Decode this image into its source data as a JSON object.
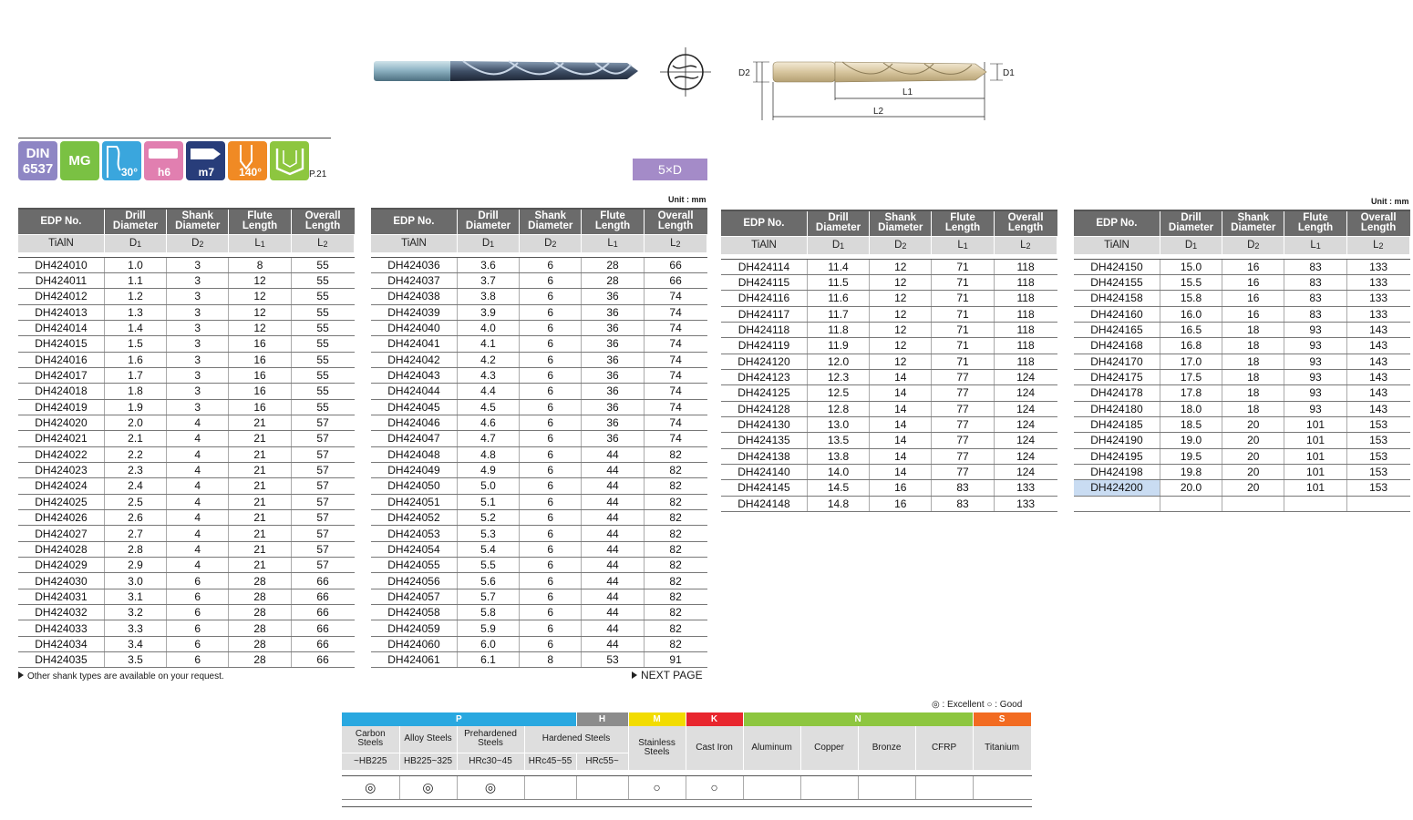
{
  "icons": {
    "din_line1": "DIN",
    "din_line2": "6537",
    "mg": "MG",
    "helix": "30°",
    "shank_tol": "h6",
    "dia_tol": "m7",
    "point": "140°",
    "page_ref": "P.21"
  },
  "diagram": {
    "d2": "D2",
    "d1": "D1",
    "l1": "L1",
    "l2": "L2"
  },
  "ratio_badge": "5×D",
  "unit": "Unit : mm",
  "headers": {
    "edp": "EDP No.",
    "drill1": "Drill",
    "drill2": "Diameter",
    "shank1": "Shank",
    "shank2": "Diameter",
    "flute1": "Flute",
    "flute2": "Length",
    "overall1": "Overall",
    "overall2": "Length",
    "coating": "TiAlN",
    "sym_d1": "D",
    "sym_d1_sub": "1",
    "sym_d2": "D",
    "sym_d2_sub": "2",
    "sym_l1": "L",
    "sym_l1_sub": "1",
    "sym_l2": "L",
    "sym_l2_sub": "2"
  },
  "tables": [
    [
      [
        "DH424010",
        "1.0",
        "3",
        "8",
        "55"
      ],
      [
        "DH424011",
        "1.1",
        "3",
        "12",
        "55"
      ],
      [
        "DH424012",
        "1.2",
        "3",
        "12",
        "55"
      ],
      [
        "DH424013",
        "1.3",
        "3",
        "12",
        "55"
      ],
      [
        "DH424014",
        "1.4",
        "3",
        "12",
        "55"
      ],
      [
        "DH424015",
        "1.5",
        "3",
        "16",
        "55"
      ],
      [
        "DH424016",
        "1.6",
        "3",
        "16",
        "55"
      ],
      [
        "DH424017",
        "1.7",
        "3",
        "16",
        "55"
      ],
      [
        "DH424018",
        "1.8",
        "3",
        "16",
        "55"
      ],
      [
        "DH424019",
        "1.9",
        "3",
        "16",
        "55"
      ],
      [
        "DH424020",
        "2.0",
        "4",
        "21",
        "57"
      ],
      [
        "DH424021",
        "2.1",
        "4",
        "21",
        "57"
      ],
      [
        "DH424022",
        "2.2",
        "4",
        "21",
        "57"
      ],
      [
        "DH424023",
        "2.3",
        "4",
        "21",
        "57"
      ],
      [
        "DH424024",
        "2.4",
        "4",
        "21",
        "57"
      ],
      [
        "DH424025",
        "2.5",
        "4",
        "21",
        "57"
      ],
      [
        "DH424026",
        "2.6",
        "4",
        "21",
        "57"
      ],
      [
        "DH424027",
        "2.7",
        "4",
        "21",
        "57"
      ],
      [
        "DH424028",
        "2.8",
        "4",
        "21",
        "57"
      ],
      [
        "DH424029",
        "2.9",
        "4",
        "21",
        "57"
      ],
      [
        "DH424030",
        "3.0",
        "6",
        "28",
        "66"
      ],
      [
        "DH424031",
        "3.1",
        "6",
        "28",
        "66"
      ],
      [
        "DH424032",
        "3.2",
        "6",
        "28",
        "66"
      ],
      [
        "DH424033",
        "3.3",
        "6",
        "28",
        "66"
      ],
      [
        "DH424034",
        "3.4",
        "6",
        "28",
        "66"
      ],
      [
        "DH424035",
        "3.5",
        "6",
        "28",
        "66"
      ]
    ],
    [
      [
        "DH424036",
        "3.6",
        "6",
        "28",
        "66"
      ],
      [
        "DH424037",
        "3.7",
        "6",
        "28",
        "66"
      ],
      [
        "DH424038",
        "3.8",
        "6",
        "36",
        "74"
      ],
      [
        "DH424039",
        "3.9",
        "6",
        "36",
        "74"
      ],
      [
        "DH424040",
        "4.0",
        "6",
        "36",
        "74"
      ],
      [
        "DH424041",
        "4.1",
        "6",
        "36",
        "74"
      ],
      [
        "DH424042",
        "4.2",
        "6",
        "36",
        "74"
      ],
      [
        "DH424043",
        "4.3",
        "6",
        "36",
        "74"
      ],
      [
        "DH424044",
        "4.4",
        "6",
        "36",
        "74"
      ],
      [
        "DH424045",
        "4.5",
        "6",
        "36",
        "74"
      ],
      [
        "DH424046",
        "4.6",
        "6",
        "36",
        "74"
      ],
      [
        "DH424047",
        "4.7",
        "6",
        "36",
        "74"
      ],
      [
        "DH424048",
        "4.8",
        "6",
        "44",
        "82"
      ],
      [
        "DH424049",
        "4.9",
        "6",
        "44",
        "82"
      ],
      [
        "DH424050",
        "5.0",
        "6",
        "44",
        "82"
      ],
      [
        "DH424051",
        "5.1",
        "6",
        "44",
        "82"
      ],
      [
        "DH424052",
        "5.2",
        "6",
        "44",
        "82"
      ],
      [
        "DH424053",
        "5.3",
        "6",
        "44",
        "82"
      ],
      [
        "DH424054",
        "5.4",
        "6",
        "44",
        "82"
      ],
      [
        "DH424055",
        "5.5",
        "6",
        "44",
        "82"
      ],
      [
        "DH424056",
        "5.6",
        "6",
        "44",
        "82"
      ],
      [
        "DH424057",
        "5.7",
        "6",
        "44",
        "82"
      ],
      [
        "DH424058",
        "5.8",
        "6",
        "44",
        "82"
      ],
      [
        "DH424059",
        "5.9",
        "6",
        "44",
        "82"
      ],
      [
        "DH424060",
        "6.0",
        "6",
        "44",
        "82"
      ],
      [
        "DH424061",
        "6.1",
        "8",
        "53",
        "91"
      ]
    ],
    [
      [
        "DH424114",
        "11.4",
        "12",
        "71",
        "118"
      ],
      [
        "DH424115",
        "11.5",
        "12",
        "71",
        "118"
      ],
      [
        "DH424116",
        "11.6",
        "12",
        "71",
        "118"
      ],
      [
        "DH424117",
        "11.7",
        "12",
        "71",
        "118"
      ],
      [
        "DH424118",
        "11.8",
        "12",
        "71",
        "118"
      ],
      [
        "DH424119",
        "11.9",
        "12",
        "71",
        "118"
      ],
      [
        "DH424120",
        "12.0",
        "12",
        "71",
        "118"
      ],
      [
        "DH424123",
        "12.3",
        "14",
        "77",
        "124"
      ],
      [
        "DH424125",
        "12.5",
        "14",
        "77",
        "124"
      ],
      [
        "DH424128",
        "12.8",
        "14",
        "77",
        "124"
      ],
      [
        "DH424130",
        "13.0",
        "14",
        "77",
        "124"
      ],
      [
        "DH424135",
        "13.5",
        "14",
        "77",
        "124"
      ],
      [
        "DH424138",
        "13.8",
        "14",
        "77",
        "124"
      ],
      [
        "DH424140",
        "14.0",
        "14",
        "77",
        "124"
      ],
      [
        "DH424145",
        "14.5",
        "16",
        "83",
        "133"
      ],
      [
        "DH424148",
        "14.8",
        "16",
        "83",
        "133"
      ]
    ],
    [
      [
        "DH424150",
        "15.0",
        "16",
        "83",
        "133"
      ],
      [
        "DH424155",
        "15.5",
        "16",
        "83",
        "133"
      ],
      [
        "DH424158",
        "15.8",
        "16",
        "83",
        "133"
      ],
      [
        "DH424160",
        "16.0",
        "16",
        "83",
        "133"
      ],
      [
        "DH424165",
        "16.5",
        "18",
        "93",
        "143"
      ],
      [
        "DH424168",
        "16.8",
        "18",
        "93",
        "143"
      ],
      [
        "DH424170",
        "17.0",
        "18",
        "93",
        "143"
      ],
      [
        "DH424175",
        "17.5",
        "18",
        "93",
        "143"
      ],
      [
        "DH424178",
        "17.8",
        "18",
        "93",
        "143"
      ],
      [
        "DH424180",
        "18.0",
        "18",
        "93",
        "143"
      ],
      [
        "DH424185",
        "18.5",
        "20",
        "101",
        "153"
      ],
      [
        "DH424190",
        "19.0",
        "20",
        "101",
        "153"
      ],
      [
        "DH424195",
        "19.5",
        "20",
        "101",
        "153"
      ],
      [
        "DH424198",
        "19.8",
        "20",
        "101",
        "153"
      ],
      [
        "DH424200",
        "20.0",
        "20",
        "101",
        "153"
      ],
      [
        "",
        "",
        "",
        "",
        ""
      ]
    ]
  ],
  "note": "Other shank types are available on your request.",
  "next_page": "NEXT PAGE",
  "legend": "◎ : Excellent   ○ : Good",
  "materials": {
    "groups": [
      {
        "label": "P",
        "color": "#29a8e0"
      },
      {
        "label": "H",
        "color": "#8c8c8c"
      },
      {
        "label": "M",
        "color": "#f2dc00"
      },
      {
        "label": "K",
        "color": "#e8262e"
      },
      {
        "label": "N",
        "color": "#8dc63f"
      },
      {
        "label": "S",
        "color": "#f26b21"
      }
    ],
    "names": [
      "Carbon Steels",
      "Alloy Steels",
      "Prehardened Steels",
      "Hardened Steels",
      "Stainless Steels",
      "Cast Iron",
      "Aluminum",
      "Copper",
      "Bronze",
      "CFRP",
      "Titanium"
    ],
    "hardness": [
      "~HB225",
      "HB225~325",
      "HRc30~45",
      "HRc45~55",
      "HRc55~"
    ],
    "ratings": [
      "◎",
      "◎",
      "◎",
      "",
      "",
      "○",
      "○",
      "",
      "",
      "",
      "",
      "",
      ""
    ]
  }
}
